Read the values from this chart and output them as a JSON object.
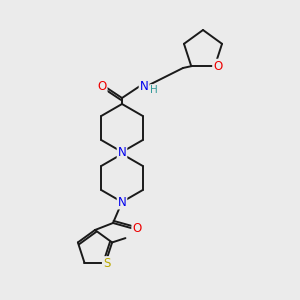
{
  "background_color": "#ebebeb",
  "bond_color": "#1a1a1a",
  "atom_colors": {
    "N": "#0000ee",
    "O": "#ee0000",
    "S": "#bbaa00",
    "H": "#339999",
    "C": "#1a1a1a"
  },
  "figsize": [
    3.0,
    3.0
  ],
  "dpi": 100
}
